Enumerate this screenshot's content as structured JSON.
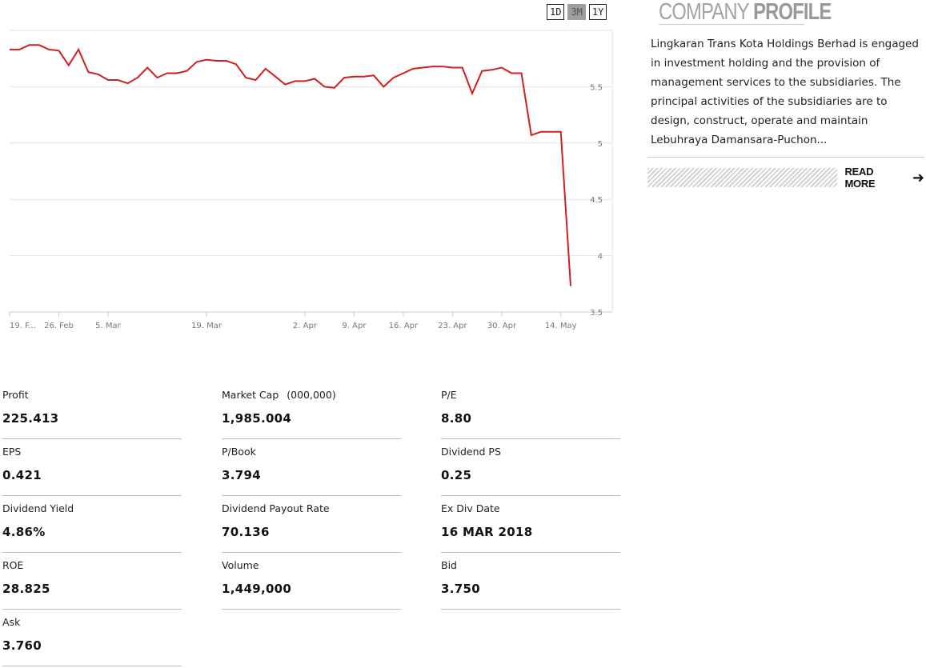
{
  "range_buttons": [
    {
      "label": "1D",
      "active": false
    },
    {
      "label": "3M",
      "active": true
    },
    {
      "label": "1Y",
      "active": false
    }
  ],
  "chart_data": {
    "type": "line",
    "series": [
      {
        "color": "#d21e1e",
        "values": [
          5.83,
          5.83,
          5.87,
          5.87,
          5.83,
          5.82,
          5.69,
          5.83,
          5.63,
          5.61,
          5.56,
          5.56,
          5.53,
          5.58,
          5.67,
          5.58,
          5.62,
          5.62,
          5.64,
          5.72,
          5.74,
          5.73,
          5.73,
          5.7,
          5.58,
          5.56,
          5.66,
          5.59,
          5.52,
          5.55,
          5.55,
          5.57,
          5.5,
          5.49,
          5.58,
          5.59,
          5.59,
          5.6,
          5.5,
          5.58,
          5.62,
          5.66,
          5.67,
          5.68,
          5.68,
          5.67,
          5.67,
          5.44,
          5.64,
          5.65,
          5.67,
          5.62,
          5.62,
          5.07,
          5.1,
          5.1,
          5.1,
          3.73
        ]
      }
    ],
    "x_tick_labels": [
      "19. F...",
      "26. Feb",
      "5. Mar",
      "19. Mar",
      "2. Apr",
      "9. Apr",
      "16. Apr",
      "23. Apr",
      "30. Apr",
      "14. May"
    ],
    "x_tick_index": [
      0,
      5,
      10,
      20,
      30,
      35,
      40,
      45,
      50,
      56
    ],
    "y_ticks": [
      3.5,
      4,
      4.5,
      5,
      5.5
    ],
    "ylim": [
      3.5,
      6.0
    ],
    "grid": true,
    "y_axis_side": "right"
  },
  "profile": {
    "title_light": "COMPANY ",
    "title_bold": "PROFILE",
    "description": "Lingkaran Trans Kota Holdings Berhad is engaged in investment holding and the provision of management services to the subsidiaries. The principal activities of the subsidiaries are to design, construct, operate and maintain Lebuhraya Damansara-Puchon...",
    "read_more": "READ MORE",
    "arrow": "arrow-right-icon"
  },
  "stats": [
    {
      "label": "Profit",
      "unit": "",
      "value": "225.413"
    },
    {
      "label": "Market Cap",
      "unit": "(000,000)",
      "value": "1,985.004"
    },
    {
      "label": "P/E",
      "unit": "",
      "value": "8.80"
    },
    {
      "label": "EPS",
      "unit": "",
      "value": "0.421"
    },
    {
      "label": "P/Book",
      "unit": "",
      "value": "3.794"
    },
    {
      "label": "Dividend PS",
      "unit": "",
      "value": "0.25"
    },
    {
      "label": "Dividend Yield",
      "unit": "",
      "value": "4.86%"
    },
    {
      "label": "Dividend Payout Rate",
      "unit": "",
      "value": "70.136"
    },
    {
      "label": "Ex Div Date",
      "unit": "",
      "value": "16 MAR 2018"
    },
    {
      "label": "ROE",
      "unit": "",
      "value": "28.825"
    },
    {
      "label": "Volume",
      "unit": "",
      "value": "1,449,000"
    },
    {
      "label": "Bid",
      "unit": "",
      "value": "3.750"
    },
    {
      "label": "Ask",
      "unit": "",
      "value": "3.760"
    }
  ]
}
